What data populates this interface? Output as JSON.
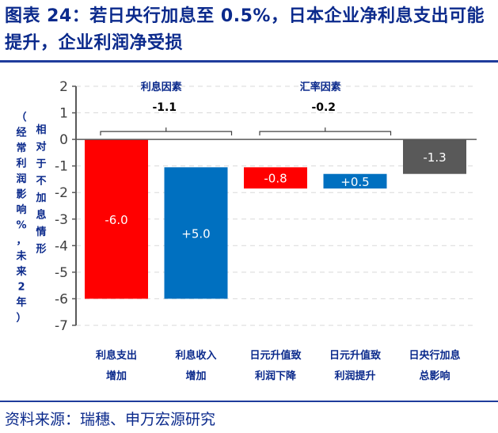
{
  "title": "图表 24：若日央行加息至 0.5%，日本企业净利息支出可能提升，企业利润净受损",
  "source": "资料来源：瑞穗、申万宏源研究",
  "chart_data": {
    "type": "bar",
    "subtype": "waterfall",
    "ylabel_outer": "（经常利润影响%，未来2年）",
    "ylabel_inner": "相对于不加息情形",
    "ylim": [
      -7,
      2
    ],
    "yticks": [
      "2",
      "1",
      "0",
      "-1",
      "-2",
      "-3",
      "-4",
      "-5",
      "-6",
      "-7"
    ],
    "grid": true,
    "categories": [
      [
        "利息支出",
        "增加"
      ],
      [
        "利息收入",
        "增加"
      ],
      [
        "日元升值致",
        "利润下降"
      ],
      [
        "日元升值致",
        "利润提升"
      ],
      [
        "日央行加息",
        "总影响"
      ]
    ],
    "bars": [
      {
        "label": "-6.0",
        "start": 0,
        "end": -6.0,
        "color": "#ff0000"
      },
      {
        "label": "+5.0",
        "start": -6.0,
        "end": -1.05,
        "color": "#0070c0"
      },
      {
        "label": "-0.8",
        "start": -1.05,
        "end": -1.85,
        "color": "#ff0000"
      },
      {
        "label": "+0.5",
        "start": -1.85,
        "end": -1.3,
        "color": "#0070c0"
      },
      {
        "label": "-1.3",
        "start": 0,
        "end": -1.3,
        "color": "#595959"
      }
    ],
    "groups": [
      {
        "name": "利息因素",
        "total": "-1.1",
        "from": 0,
        "to": 1
      },
      {
        "name": "汇率因素",
        "total": "-0.2",
        "from": 2,
        "to": 3
      }
    ]
  }
}
